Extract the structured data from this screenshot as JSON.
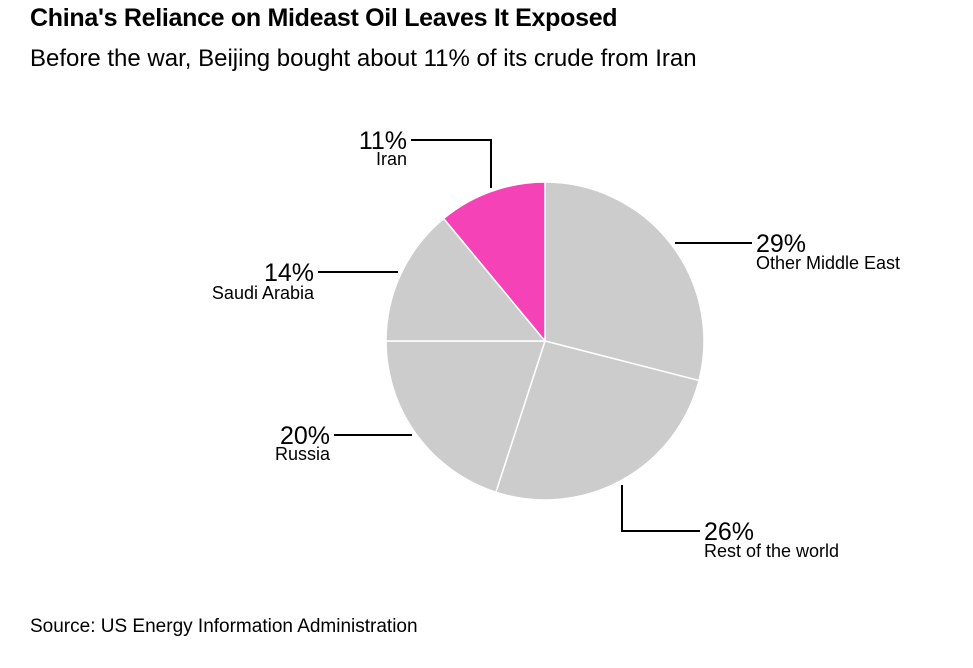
{
  "title": "China's Reliance on Mideast Oil Leaves It Exposed",
  "subtitle": "Before the war, Beijing bought about 11% of its crude from Iran",
  "source": "Source: US Energy Information Administration",
  "colors": {
    "highlight": "#f542b6",
    "slice": "#cccccc",
    "separator": "#ffffff",
    "leader": "#000000"
  },
  "chart_data": {
    "type": "pie",
    "title": "China's Reliance on Mideast Oil Leaves It Exposed",
    "subtitle": "Before the war, Beijing bought about 11% of its crude from Iran",
    "unit": "%",
    "slices": [
      {
        "label": "Other Middle East",
        "value": 29,
        "display": "29%",
        "color": "#cccccc"
      },
      {
        "label": "Rest of the world",
        "value": 26,
        "display": "26%",
        "color": "#cccccc"
      },
      {
        "label": "Russia",
        "value": 20,
        "display": "20%",
        "color": "#cccccc"
      },
      {
        "label": "Saudi Arabia",
        "value": 14,
        "display": "14%",
        "color": "#cccccc"
      },
      {
        "label": "Iran",
        "value": 11,
        "display": "11%",
        "color": "#f542b6"
      }
    ]
  }
}
